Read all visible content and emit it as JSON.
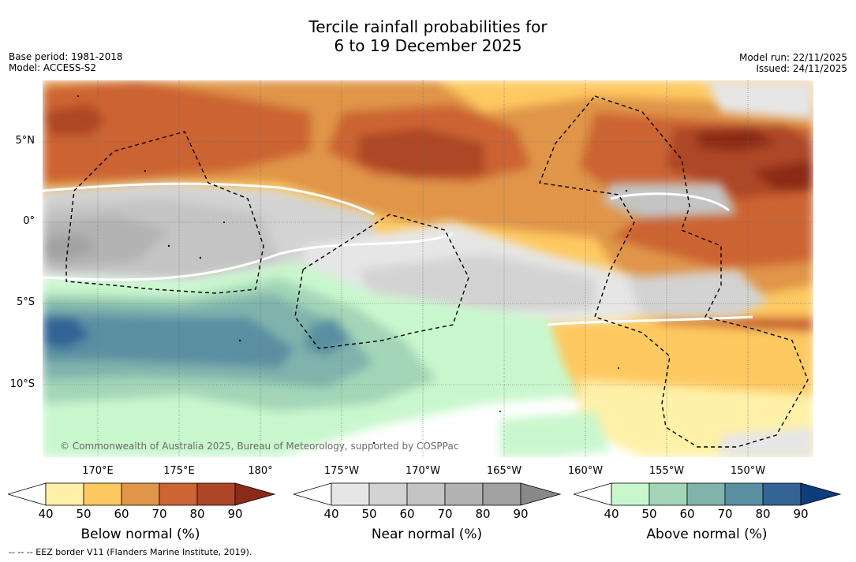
{
  "title": {
    "line1": "Tercile rainfall probabilities for",
    "line2": "6 to 19 December 2025"
  },
  "meta": {
    "base_period": "Base period: 1981-2018",
    "model": "Model: ACCESS-S2",
    "model_run": "Model run: 22/11/2025",
    "issued": "Issued: 24/11/2025"
  },
  "lat_labels": [
    "5°N",
    "0°",
    "5°S",
    "10°S"
  ],
  "lon_labels": [
    "170°E",
    "175°E",
    "180°",
    "175°W",
    "170°W",
    "165°W",
    "160°W",
    "155°W",
    "150°W"
  ],
  "copyright": "© Commonwealth of Australia 2025, Bureau of Meteorology, supported by COSPPac",
  "colorbars": [
    {
      "title": "Below normal (%)",
      "ticks": [
        "40",
        "50",
        "60",
        "70",
        "80",
        "90"
      ],
      "colors": [
        "#fff1a8",
        "#fec960",
        "#e09548",
        "#cc6433",
        "#ad4626",
        "#8b2a17"
      ]
    },
    {
      "title": "Near normal (%)",
      "ticks": [
        "40",
        "50",
        "60",
        "70",
        "80",
        "90"
      ],
      "colors": [
        "#e6e6e6",
        "#d3d3d3",
        "#c4c4c4",
        "#b3b3b3",
        "#a2a2a2",
        "#888888"
      ]
    },
    {
      "title": "Above normal (%)",
      "ticks": [
        "40",
        "50",
        "60",
        "70",
        "80",
        "90"
      ],
      "colors": [
        "#c9f7cd",
        "#a3d6b8",
        "#80b3ac",
        "#5a8fa2",
        "#336495",
        "#0e3d7c"
      ]
    }
  ],
  "footer": "--  --  -- EEZ border V11 (Flanders Marine Institute, 2019)."
}
